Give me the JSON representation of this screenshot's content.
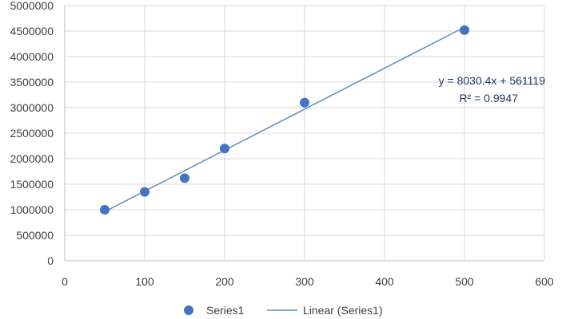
{
  "chart_data": {
    "type": "scatter",
    "title": "",
    "xlabel": "",
    "ylabel": "",
    "xlim": [
      0,
      600
    ],
    "ylim": [
      0,
      5000000
    ],
    "xticks": [
      "0",
      "100",
      "200",
      "300",
      "400",
      "500",
      "600"
    ],
    "yticks": [
      "0",
      "500000",
      "1000000",
      "1500000",
      "2000000",
      "2500000",
      "3000000",
      "3500000",
      "4000000",
      "4500000",
      "5000000"
    ],
    "grid": true,
    "legend_position": "bottom",
    "series": [
      {
        "name": "Series1",
        "color": "#4472c4",
        "points": [
          {
            "x": 50,
            "y": 1000000
          },
          {
            "x": 100,
            "y": 1350000
          },
          {
            "x": 150,
            "y": 1620000
          },
          {
            "x": 200,
            "y": 2200000
          },
          {
            "x": 300,
            "y": 3100000
          },
          {
            "x": 500,
            "y": 4520000
          }
        ]
      }
    ],
    "trendline": {
      "name": "Linear (Series1)",
      "type": "linear",
      "color": "#5b8fc0",
      "slope": 8030.4,
      "intercept": 561119,
      "x_range": [
        50,
        500
      ],
      "equation": "y = 8030.4x + 561119",
      "r_squared": "R² = 0.9947"
    },
    "legend": [
      {
        "label": "Series1",
        "kind": "marker"
      },
      {
        "label": "Linear (Series1)",
        "kind": "line"
      }
    ]
  }
}
